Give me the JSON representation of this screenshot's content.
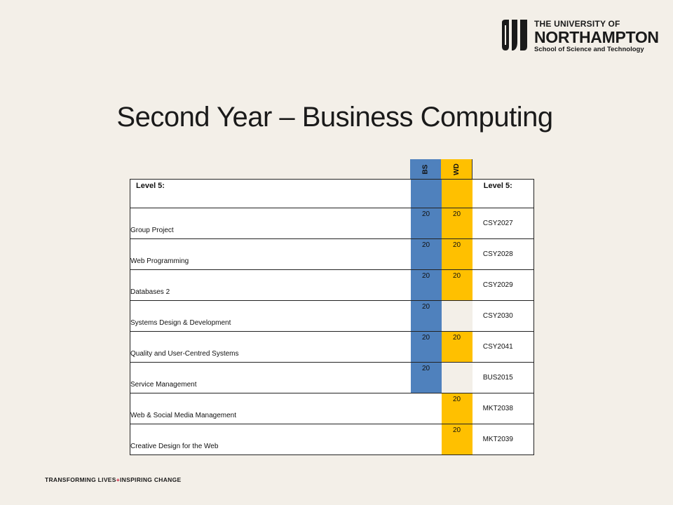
{
  "logo": {
    "line1": "THE UNIVERSITY OF",
    "line2": "NORTHAMPTON",
    "line3": "School of Science and Technology"
  },
  "title": "Second Year – Business Computing",
  "table": {
    "col_bs": "BS",
    "col_wd": "WD",
    "header_left": "Level 5:",
    "header_right": "Level 5:",
    "rows": [
      {
        "name": "Group Project",
        "bs": "20",
        "wd": "20",
        "code": "CSY2027"
      },
      {
        "name": "Web Programming",
        "bs": "20",
        "wd": "20",
        "code": "CSY2028"
      },
      {
        "name": "Databases 2",
        "bs": "20",
        "wd": "20",
        "code": "CSY2029"
      },
      {
        "name": "Systems Design & Development",
        "bs": "20",
        "wd": "",
        "code": "CSY2030"
      },
      {
        "name": "Quality and User-Centred Systems",
        "bs": "20",
        "wd": "20",
        "code": "CSY2041"
      },
      {
        "name": "Service Management",
        "bs": "20",
        "wd": "",
        "code": "BUS2015"
      },
      {
        "name": "Web & Social Media Management",
        "bs": "",
        "wd": "20",
        "code": "MKT2038"
      },
      {
        "name": "Creative Design for the Web",
        "bs": "",
        "wd": "20",
        "code": "MKT2039"
      }
    ]
  },
  "footer": {
    "part1": "TRANSFORMING LIVES",
    "plus": "+",
    "part2": "INSPIRING CHANGE"
  },
  "colors": {
    "bs": "#4f81bd",
    "wd": "#ffc000",
    "background": "#f3efe8"
  }
}
